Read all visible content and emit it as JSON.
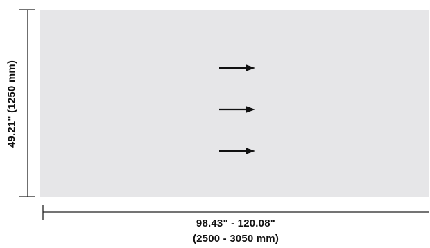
{
  "dimensions": {
    "height_label": "49.21\" (1250 mm)",
    "width_label_line1": "98.43\" - 120.08\"",
    "width_label_line2": "(2500 - 3050 mm)"
  },
  "colors": {
    "panel_fill": "#e6e6e8",
    "line": "#222222",
    "text": "#111111"
  },
  "icons": {
    "direction_arrows": [
      "arrow-right-icon",
      "arrow-right-icon",
      "arrow-right-icon"
    ]
  }
}
